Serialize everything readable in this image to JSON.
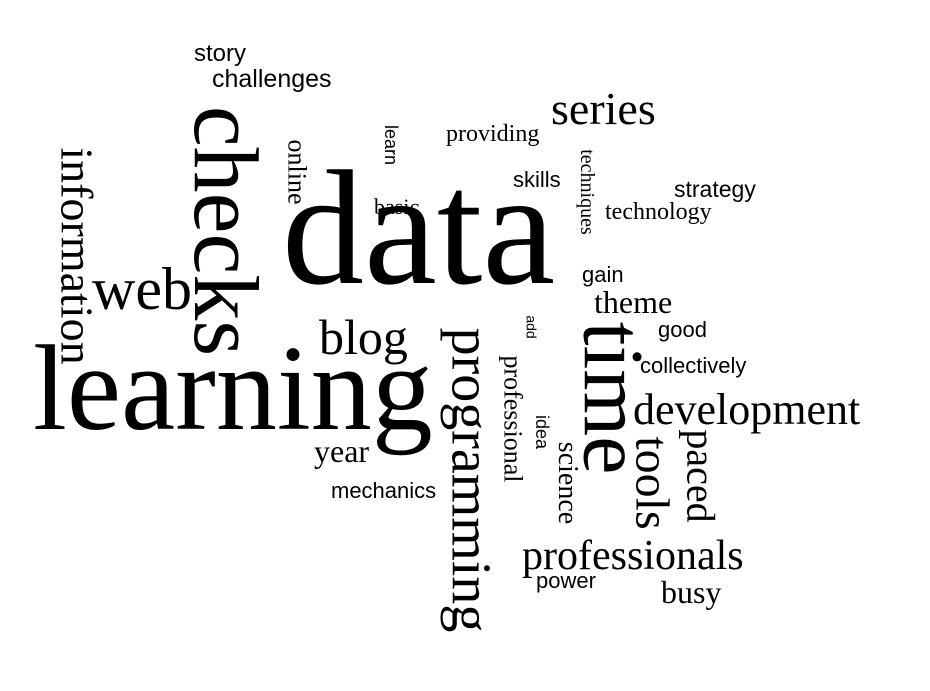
{
  "words": [
    {
      "text": "data",
      "color": "#3b3f7d"
    },
    {
      "text": "learning",
      "color": "#5257a6"
    },
    {
      "text": "checks",
      "color": "#6f79c9"
    },
    {
      "text": "time",
      "color": "#9aa3dd"
    },
    {
      "text": "programming",
      "color": "#8ea163"
    },
    {
      "text": "information",
      "color": "#e3b865"
    },
    {
      "text": "development",
      "color": "#c4a23f"
    },
    {
      "text": "professionals",
      "color": "#8c3a3a"
    },
    {
      "text": "tools",
      "color": "#8b6f24"
    },
    {
      "text": "series",
      "color": "#b6cf6e"
    },
    {
      "text": "web",
      "color": "#5b7a2e"
    },
    {
      "text": "blog",
      "color": "#d1de98"
    },
    {
      "text": "paced",
      "color": "#e8cd8c"
    },
    {
      "text": "theme",
      "color": "#a14f8a"
    },
    {
      "text": "science",
      "color": "#6c3a6a"
    },
    {
      "text": "professional",
      "color": "#e79a9a"
    },
    {
      "text": "busy",
      "color": "#9a3d3d"
    },
    {
      "text": "year",
      "color": "#c156a8"
    },
    {
      "text": "technology",
      "color": "#9c3a3a"
    },
    {
      "text": "online",
      "color": "#d65c5c"
    },
    {
      "text": "providing",
      "color": "#8b6f2e"
    },
    {
      "text": "collectively",
      "color": "#3d4580"
    },
    {
      "text": "mechanics",
      "color": "#bcd28a"
    },
    {
      "text": "strategy",
      "color": "#eccd97"
    },
    {
      "text": "challenges",
      "color": "#d4dea3"
    },
    {
      "text": "story",
      "color": "#e8b25e"
    },
    {
      "text": "skills",
      "color": "#b89a3b"
    },
    {
      "text": "basic",
      "color": "#373b7a"
    },
    {
      "text": "power",
      "color": "#e7a3d4"
    },
    {
      "text": "good",
      "color": "#a5acdc"
    },
    {
      "text": "gain",
      "color": "#6a73c2"
    },
    {
      "text": "techniques",
      "color": "#7d3d3d"
    },
    {
      "text": "idea",
      "color": "#7a8c4a"
    },
    {
      "text": "learn",
      "color": "#9aa862"
    },
    {
      "text": "add",
      "color": "#e37070"
    }
  ]
}
